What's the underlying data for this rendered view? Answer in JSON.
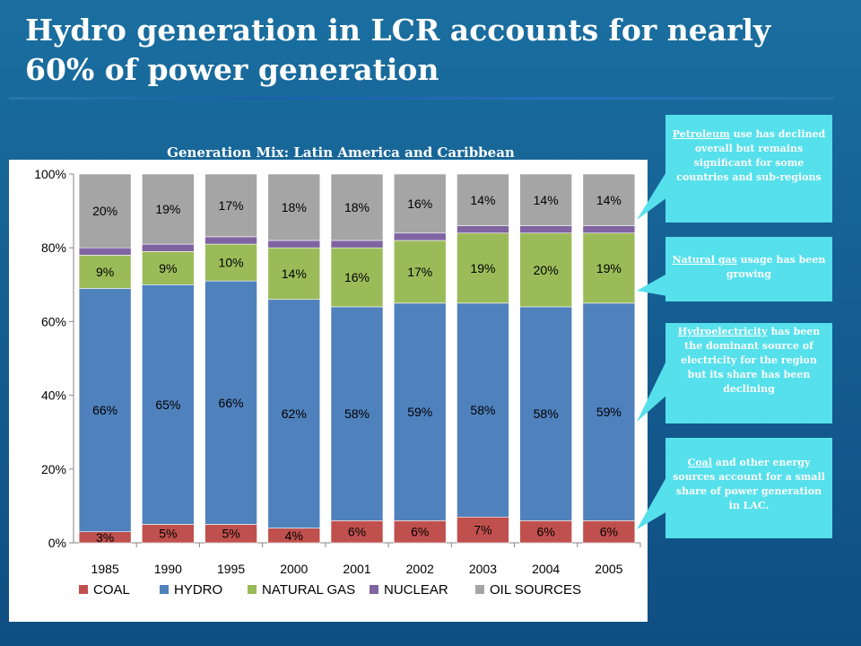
{
  "slide": {
    "title": "Hydro generation in LCR accounts for nearly 60% of power generation"
  },
  "callouts": [
    {
      "keyword": "Petroleum",
      "text": " use has declined overall but remains significant for some countries and sub-regions"
    },
    {
      "keyword": "Natural gas",
      "text": " usage has been growing"
    },
    {
      "keyword": "Hydroelectricity",
      "text": " has been the dominant source of electricity for the region but its share has been declining"
    },
    {
      "keyword": "Coal",
      "text": " and other energy sources account for a small share of power generation in LAC."
    }
  ],
  "colors": {
    "coal": "#c0504d",
    "hydro": "#4f81bd",
    "natural_gas": "#9bbb59",
    "nuclear": "#8064a2",
    "oil": "#a5a5a5",
    "callout": "#55e0ec"
  },
  "chart_data": {
    "type": "bar",
    "stacked": true,
    "title": "Generation Mix: Latin America and Caribbean",
    "categories": [
      "1985",
      "1990",
      "1995",
      "2000",
      "2001",
      "2002",
      "2003",
      "2004",
      "2005"
    ],
    "series": [
      {
        "name": "COAL",
        "values": [
          3,
          5,
          5,
          4,
          6,
          6,
          7,
          6,
          6
        ],
        "labels": [
          "3%",
          "5%",
          "5%",
          "4%",
          "6%",
          "6%",
          "7%",
          "6%",
          "6%"
        ]
      },
      {
        "name": "HYDRO",
        "values": [
          66,
          65,
          66,
          62,
          58,
          59,
          58,
          58,
          59
        ],
        "labels": [
          "66%",
          "65%",
          "66%",
          "62%",
          "58%",
          "59%",
          "58%",
          "58%",
          "59%"
        ]
      },
      {
        "name": "NATURAL GAS",
        "values": [
          9,
          9,
          10,
          14,
          16,
          17,
          19,
          20,
          19
        ],
        "labels": [
          "9%",
          "9%",
          "10%",
          "14%",
          "16%",
          "17%",
          "19%",
          "20%",
          "19%"
        ]
      },
      {
        "name": "NUCLEAR",
        "values": [
          2,
          2,
          2,
          2,
          2,
          2,
          2,
          2,
          2
        ],
        "labels": [
          "",
          "",
          "",
          "",
          "",
          "",
          "",
          "",
          ""
        ]
      },
      {
        "name": "OIL SOURCES",
        "values": [
          20,
          19,
          17,
          18,
          18,
          16,
          14,
          14,
          14
        ],
        "labels": [
          "20%",
          "19%",
          "17%",
          "18%",
          "18%",
          "16%",
          "14%",
          "14%",
          "14%"
        ]
      }
    ],
    "yticks": [
      "0%",
      "20%",
      "40%",
      "60%",
      "80%",
      "100%"
    ],
    "ylim": [
      0,
      100
    ],
    "legend_position": "bottom",
    "grid": false
  }
}
